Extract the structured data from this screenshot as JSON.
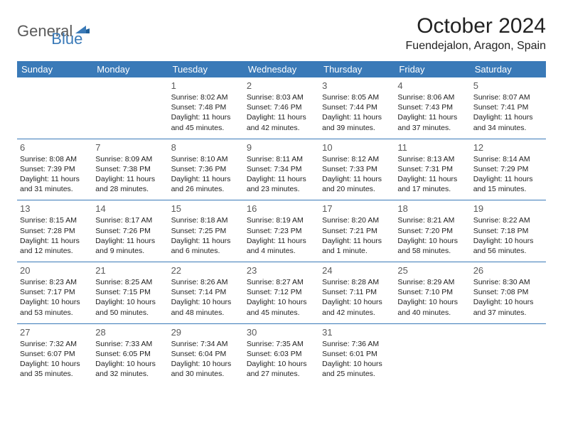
{
  "brand": {
    "part1": "General",
    "part2": "Blue"
  },
  "title": "October 2024",
  "location": "Fuendejalon, Aragon, Spain",
  "colors": {
    "header_bg": "#3a7ab8",
    "header_text": "#ffffff",
    "divider": "#3a7ab8",
    "daynum": "#5a5a5a",
    "body_text": "#222222",
    "brand_gray": "#5a5a5a",
    "brand_blue": "#3a7ab8",
    "page_bg": "#ffffff"
  },
  "typography": {
    "title_fontsize": 30,
    "location_fontsize": 16,
    "dayheader_fontsize": 13,
    "daynum_fontsize": 13,
    "cell_fontsize": 10.5,
    "logo_fontsize": 22
  },
  "day_headers": [
    "Sunday",
    "Monday",
    "Tuesday",
    "Wednesday",
    "Thursday",
    "Friday",
    "Saturday"
  ],
  "weeks": [
    [
      null,
      null,
      {
        "n": "1",
        "sr": "Sunrise: 8:02 AM",
        "ss": "Sunset: 7:48 PM",
        "d1": "Daylight: 11 hours",
        "d2": "and 45 minutes."
      },
      {
        "n": "2",
        "sr": "Sunrise: 8:03 AM",
        "ss": "Sunset: 7:46 PM",
        "d1": "Daylight: 11 hours",
        "d2": "and 42 minutes."
      },
      {
        "n": "3",
        "sr": "Sunrise: 8:05 AM",
        "ss": "Sunset: 7:44 PM",
        "d1": "Daylight: 11 hours",
        "d2": "and 39 minutes."
      },
      {
        "n": "4",
        "sr": "Sunrise: 8:06 AM",
        "ss": "Sunset: 7:43 PM",
        "d1": "Daylight: 11 hours",
        "d2": "and 37 minutes."
      },
      {
        "n": "5",
        "sr": "Sunrise: 8:07 AM",
        "ss": "Sunset: 7:41 PM",
        "d1": "Daylight: 11 hours",
        "d2": "and 34 minutes."
      }
    ],
    [
      {
        "n": "6",
        "sr": "Sunrise: 8:08 AM",
        "ss": "Sunset: 7:39 PM",
        "d1": "Daylight: 11 hours",
        "d2": "and 31 minutes."
      },
      {
        "n": "7",
        "sr": "Sunrise: 8:09 AM",
        "ss": "Sunset: 7:38 PM",
        "d1": "Daylight: 11 hours",
        "d2": "and 28 minutes."
      },
      {
        "n": "8",
        "sr": "Sunrise: 8:10 AM",
        "ss": "Sunset: 7:36 PM",
        "d1": "Daylight: 11 hours",
        "d2": "and 26 minutes."
      },
      {
        "n": "9",
        "sr": "Sunrise: 8:11 AM",
        "ss": "Sunset: 7:34 PM",
        "d1": "Daylight: 11 hours",
        "d2": "and 23 minutes."
      },
      {
        "n": "10",
        "sr": "Sunrise: 8:12 AM",
        "ss": "Sunset: 7:33 PM",
        "d1": "Daylight: 11 hours",
        "d2": "and 20 minutes."
      },
      {
        "n": "11",
        "sr": "Sunrise: 8:13 AM",
        "ss": "Sunset: 7:31 PM",
        "d1": "Daylight: 11 hours",
        "d2": "and 17 minutes."
      },
      {
        "n": "12",
        "sr": "Sunrise: 8:14 AM",
        "ss": "Sunset: 7:29 PM",
        "d1": "Daylight: 11 hours",
        "d2": "and 15 minutes."
      }
    ],
    [
      {
        "n": "13",
        "sr": "Sunrise: 8:15 AM",
        "ss": "Sunset: 7:28 PM",
        "d1": "Daylight: 11 hours",
        "d2": "and 12 minutes."
      },
      {
        "n": "14",
        "sr": "Sunrise: 8:17 AM",
        "ss": "Sunset: 7:26 PM",
        "d1": "Daylight: 11 hours",
        "d2": "and 9 minutes."
      },
      {
        "n": "15",
        "sr": "Sunrise: 8:18 AM",
        "ss": "Sunset: 7:25 PM",
        "d1": "Daylight: 11 hours",
        "d2": "and 6 minutes."
      },
      {
        "n": "16",
        "sr": "Sunrise: 8:19 AM",
        "ss": "Sunset: 7:23 PM",
        "d1": "Daylight: 11 hours",
        "d2": "and 4 minutes."
      },
      {
        "n": "17",
        "sr": "Sunrise: 8:20 AM",
        "ss": "Sunset: 7:21 PM",
        "d1": "Daylight: 11 hours",
        "d2": "and 1 minute."
      },
      {
        "n": "18",
        "sr": "Sunrise: 8:21 AM",
        "ss": "Sunset: 7:20 PM",
        "d1": "Daylight: 10 hours",
        "d2": "and 58 minutes."
      },
      {
        "n": "19",
        "sr": "Sunrise: 8:22 AM",
        "ss": "Sunset: 7:18 PM",
        "d1": "Daylight: 10 hours",
        "d2": "and 56 minutes."
      }
    ],
    [
      {
        "n": "20",
        "sr": "Sunrise: 8:23 AM",
        "ss": "Sunset: 7:17 PM",
        "d1": "Daylight: 10 hours",
        "d2": "and 53 minutes."
      },
      {
        "n": "21",
        "sr": "Sunrise: 8:25 AM",
        "ss": "Sunset: 7:15 PM",
        "d1": "Daylight: 10 hours",
        "d2": "and 50 minutes."
      },
      {
        "n": "22",
        "sr": "Sunrise: 8:26 AM",
        "ss": "Sunset: 7:14 PM",
        "d1": "Daylight: 10 hours",
        "d2": "and 48 minutes."
      },
      {
        "n": "23",
        "sr": "Sunrise: 8:27 AM",
        "ss": "Sunset: 7:12 PM",
        "d1": "Daylight: 10 hours",
        "d2": "and 45 minutes."
      },
      {
        "n": "24",
        "sr": "Sunrise: 8:28 AM",
        "ss": "Sunset: 7:11 PM",
        "d1": "Daylight: 10 hours",
        "d2": "and 42 minutes."
      },
      {
        "n": "25",
        "sr": "Sunrise: 8:29 AM",
        "ss": "Sunset: 7:10 PM",
        "d1": "Daylight: 10 hours",
        "d2": "and 40 minutes."
      },
      {
        "n": "26",
        "sr": "Sunrise: 8:30 AM",
        "ss": "Sunset: 7:08 PM",
        "d1": "Daylight: 10 hours",
        "d2": "and 37 minutes."
      }
    ],
    [
      {
        "n": "27",
        "sr": "Sunrise: 7:32 AM",
        "ss": "Sunset: 6:07 PM",
        "d1": "Daylight: 10 hours",
        "d2": "and 35 minutes."
      },
      {
        "n": "28",
        "sr": "Sunrise: 7:33 AM",
        "ss": "Sunset: 6:05 PM",
        "d1": "Daylight: 10 hours",
        "d2": "and 32 minutes."
      },
      {
        "n": "29",
        "sr": "Sunrise: 7:34 AM",
        "ss": "Sunset: 6:04 PM",
        "d1": "Daylight: 10 hours",
        "d2": "and 30 minutes."
      },
      {
        "n": "30",
        "sr": "Sunrise: 7:35 AM",
        "ss": "Sunset: 6:03 PM",
        "d1": "Daylight: 10 hours",
        "d2": "and 27 minutes."
      },
      {
        "n": "31",
        "sr": "Sunrise: 7:36 AM",
        "ss": "Sunset: 6:01 PM",
        "d1": "Daylight: 10 hours",
        "d2": "and 25 minutes."
      },
      null,
      null
    ]
  ]
}
